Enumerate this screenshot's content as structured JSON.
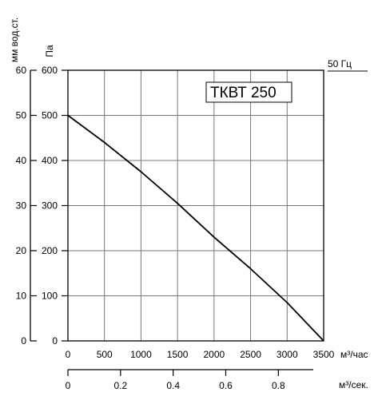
{
  "chart_data": {
    "type": "line",
    "title": "",
    "model_label": "ТКВТ 250",
    "frequency_label": "50 Гц",
    "y_left_outer": {
      "label": "мм вод.ст.",
      "ticks": [
        "60",
        "50",
        "40",
        "30",
        "20",
        "10",
        "0"
      ],
      "range": [
        0,
        60
      ]
    },
    "y_left_inner": {
      "label": "Па",
      "ticks": [
        "600",
        "500",
        "400",
        "300",
        "200",
        "100",
        "0"
      ],
      "range": [
        0,
        600
      ]
    },
    "x_primary": {
      "label": "м³/час",
      "ticks": [
        "0",
        "500",
        "1000",
        "1500",
        "2000",
        "2500",
        "3000",
        "3500"
      ],
      "range": [
        0,
        3500
      ]
    },
    "x_secondary": {
      "label": "м³/сек.",
      "ticks": [
        "0",
        "0.2",
        "0.4",
        "0.6",
        "0.8"
      ],
      "range": [
        0,
        0.9722
      ]
    },
    "grid": true,
    "series": [
      {
        "name": "",
        "color": "#000000",
        "x": [
          0,
          500,
          1000,
          1500,
          2000,
          2500,
          3000,
          3500
        ],
        "y": [
          500,
          440,
          375,
          305,
          230,
          160,
          85,
          0
        ]
      }
    ]
  }
}
